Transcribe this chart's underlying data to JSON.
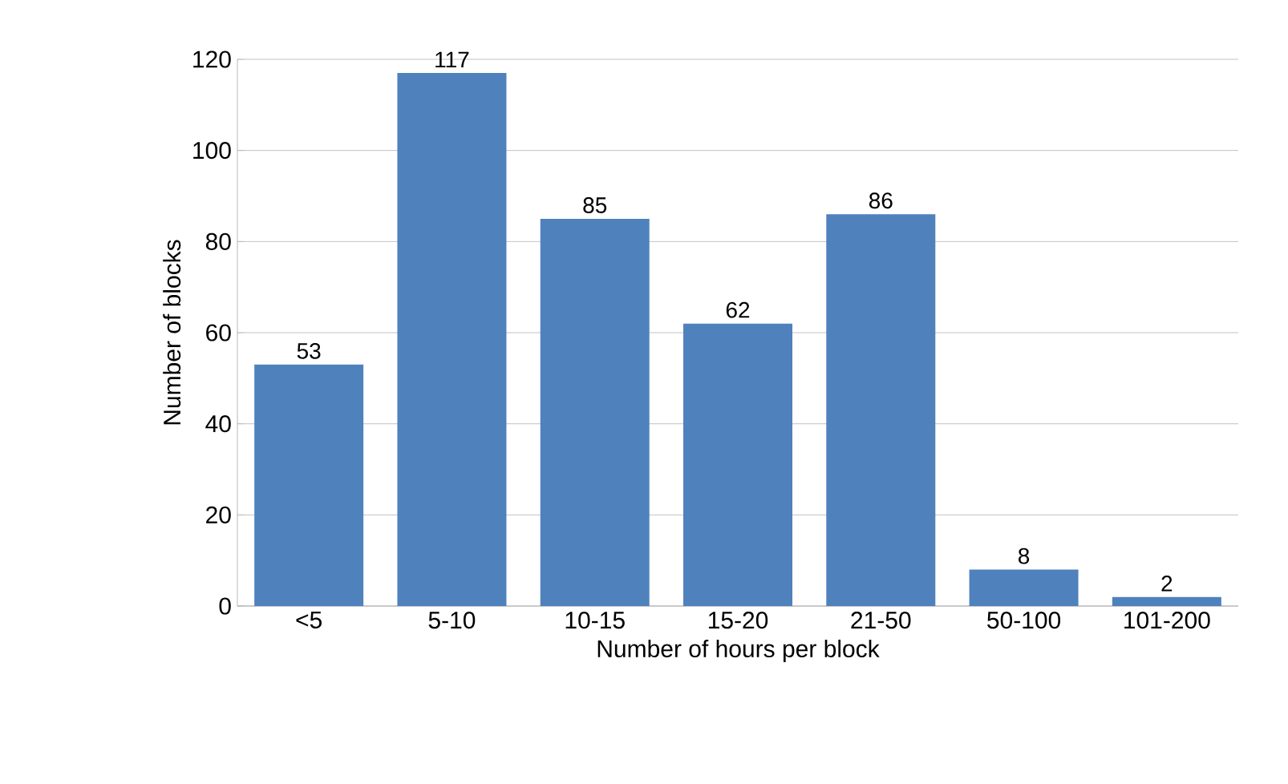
{
  "chart_data": {
    "type": "bar",
    "xlabel": "Number of hours per block",
    "ylabel": "Number of blocks",
    "categories": [
      "<5",
      "5-10",
      "10-15",
      "15-20",
      "21-50",
      "50-100",
      "101-200"
    ],
    "values": [
      53,
      117,
      85,
      62,
      86,
      8,
      2
    ],
    "color": "#4f81bd",
    "ylim": [
      0,
      120
    ],
    "yticks": [
      0,
      20,
      40,
      60,
      80,
      100,
      120
    ],
    "grid": "y",
    "data_labels": true
  }
}
